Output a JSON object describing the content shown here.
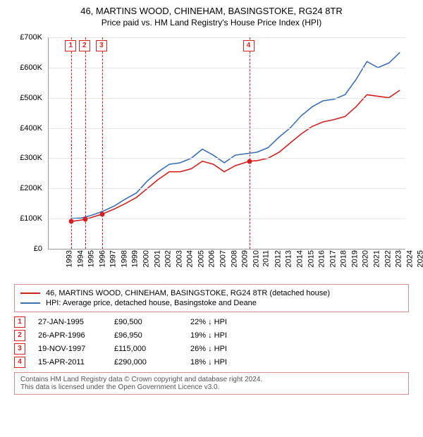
{
  "title": "46, MARTINS WOOD, CHINEHAM, BASINGSTOKE, RG24 8TR",
  "subtitle": "Price paid vs. HM Land Registry's House Price Index (HPI)",
  "chart": {
    "type": "line",
    "background_color": "#ffffff",
    "grid_color": "#e6e6e6",
    "line_width": 1.6,
    "x": {
      "min": 1993,
      "max": 2025.5,
      "ticks": [
        1993,
        1994,
        1995,
        1996,
        1997,
        1998,
        1999,
        2000,
        2001,
        2002,
        2003,
        2004,
        2005,
        2006,
        2007,
        2008,
        2009,
        2010,
        2011,
        2012,
        2013,
        2014,
        2015,
        2016,
        2017,
        2018,
        2019,
        2020,
        2021,
        2022,
        2023,
        2024,
        2025
      ]
    },
    "y": {
      "min": 0,
      "max": 700000,
      "ticks": [
        0,
        100000,
        200000,
        300000,
        400000,
        500000,
        600000,
        700000
      ],
      "labels": [
        "£0",
        "£100K",
        "£200K",
        "£300K",
        "£400K",
        "£500K",
        "£600K",
        "£700K"
      ]
    },
    "bands": [
      {
        "from": 1995.0,
        "to": 1995.15,
        "label": "1"
      },
      {
        "from": 1996.25,
        "to": 1996.4,
        "label": "2"
      },
      {
        "from": 1997.8,
        "to": 1997.95,
        "label": "3"
      },
      {
        "from": 2011.2,
        "to": 2011.35,
        "label": "4"
      }
    ],
    "band_fill": "#edf2fa",
    "marker_border": "#d22",
    "series": [
      {
        "name": "paid",
        "color": "#d22020",
        "legend": "46, MARTINS WOOD, CHINEHAM, BASINGSTOKE, RG24 8TR (detached house)",
        "points": [
          [
            1995.07,
            90500
          ],
          [
            1996.32,
            96950
          ],
          [
            1997.88,
            115000
          ],
          [
            1999,
            132000
          ],
          [
            2000,
            150000
          ],
          [
            2001,
            170000
          ],
          [
            2002,
            200000
          ],
          [
            2003,
            230000
          ],
          [
            2004,
            255000
          ],
          [
            2005,
            255000
          ],
          [
            2006,
            265000
          ],
          [
            2007,
            290000
          ],
          [
            2008,
            280000
          ],
          [
            2009,
            255000
          ],
          [
            2010,
            275000
          ],
          [
            2011.29,
            290000
          ],
          [
            2012,
            292000
          ],
          [
            2013,
            300000
          ],
          [
            2014,
            320000
          ],
          [
            2015,
            350000
          ],
          [
            2016,
            380000
          ],
          [
            2017,
            405000
          ],
          [
            2018,
            420000
          ],
          [
            2019,
            428000
          ],
          [
            2020,
            438000
          ],
          [
            2021,
            470000
          ],
          [
            2022,
            510000
          ],
          [
            2023,
            505000
          ],
          [
            2024,
            500000
          ],
          [
            2025,
            525000
          ]
        ],
        "dots": [
          [
            1995.07,
            90500
          ],
          [
            1996.32,
            96950
          ],
          [
            1997.88,
            115000
          ],
          [
            2011.29,
            290000
          ]
        ]
      },
      {
        "name": "hpi",
        "color": "#3a6fb7",
        "legend": "HPI: Average price, detached house, Basingstoke and Deane",
        "points": [
          [
            1995,
            100000
          ],
          [
            1996,
            102000
          ],
          [
            1997,
            112000
          ],
          [
            1998,
            125000
          ],
          [
            1999,
            142000
          ],
          [
            2000,
            165000
          ],
          [
            2001,
            185000
          ],
          [
            2002,
            225000
          ],
          [
            2003,
            255000
          ],
          [
            2004,
            280000
          ],
          [
            2005,
            285000
          ],
          [
            2006,
            300000
          ],
          [
            2007,
            330000
          ],
          [
            2008,
            310000
          ],
          [
            2009,
            285000
          ],
          [
            2010,
            310000
          ],
          [
            2011,
            315000
          ],
          [
            2012,
            320000
          ],
          [
            2013,
            335000
          ],
          [
            2014,
            370000
          ],
          [
            2015,
            400000
          ],
          [
            2016,
            440000
          ],
          [
            2017,
            470000
          ],
          [
            2018,
            490000
          ],
          [
            2019,
            495000
          ],
          [
            2020,
            510000
          ],
          [
            2021,
            560000
          ],
          [
            2022,
            620000
          ],
          [
            2023,
            600000
          ],
          [
            2024,
            615000
          ],
          [
            2025,
            650000
          ]
        ]
      }
    ]
  },
  "legend_border": "#d19090",
  "transactions": [
    {
      "n": "1",
      "date": "27-JAN-1995",
      "price": "£90,500",
      "diff": "22% ↓ HPI"
    },
    {
      "n": "2",
      "date": "26-APR-1996",
      "price": "£96,950",
      "diff": "19% ↓ HPI"
    },
    {
      "n": "3",
      "date": "19-NOV-1997",
      "price": "£115,000",
      "diff": "26% ↓ HPI"
    },
    {
      "n": "4",
      "date": "15-APR-2011",
      "price": "£290,000",
      "diff": "18% ↓ HPI"
    }
  ],
  "footer": {
    "l1": "Contains HM Land Registry data © Crown copyright and database right 2024.",
    "l2": "This data is licensed under the Open Government Licence v3.0."
  }
}
